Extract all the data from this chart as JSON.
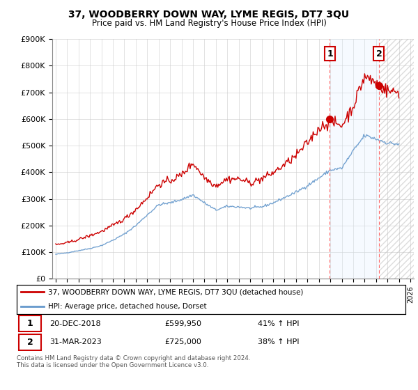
{
  "title": "37, WOODBERRY DOWN WAY, LYME REGIS, DT7 3QU",
  "subtitle": "Price paid vs. HM Land Registry's House Price Index (HPI)",
  "legend_label_red": "37, WOODBERRY DOWN WAY, LYME REGIS, DT7 3QU (detached house)",
  "legend_label_blue": "HPI: Average price, detached house, Dorset",
  "transaction1_date": "20-DEC-2018",
  "transaction1_price": "£599,950",
  "transaction1_hpi": "41% ↑ HPI",
  "transaction2_date": "31-MAR-2023",
  "transaction2_price": "£725,000",
  "transaction2_hpi": "38% ↑ HPI",
  "footnote": "Contains HM Land Registry data © Crown copyright and database right 2024.\nThis data is licensed under the Open Government Licence v3.0.",
  "ylim": [
    0,
    900000
  ],
  "yticks": [
    0,
    100000,
    200000,
    300000,
    400000,
    500000,
    600000,
    700000,
    800000,
    900000
  ],
  "ytick_labels": [
    "£0",
    "£100K",
    "£200K",
    "£300K",
    "£400K",
    "£500K",
    "£600K",
    "£700K",
    "£800K",
    "£900K"
  ],
  "red_color": "#cc0000",
  "blue_color": "#6699cc",
  "shade_color": "#ddeeff",
  "hatch_color": "#cccccc",
  "grid_color": "#cccccc",
  "marker1_x": 2018.96,
  "marker1_y": 599950,
  "marker2_x": 2023.25,
  "marker2_y": 725000,
  "xlim_left": 1994.7,
  "xlim_right": 2026.3
}
